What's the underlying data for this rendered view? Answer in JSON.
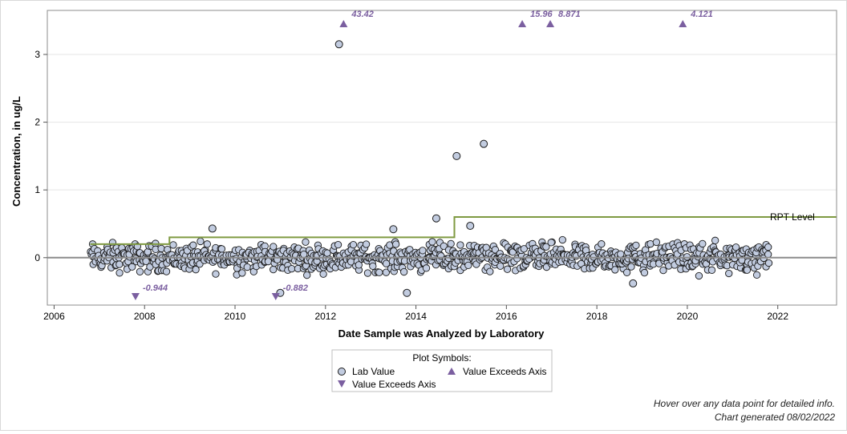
{
  "chart_data": {
    "type": "scatter",
    "title": "",
    "xlabel": "Date Sample was Analyzed by Laboratory",
    "ylabel": "Concentration, in ug/L",
    "xlim": [
      2005.85,
      2023.3
    ],
    "ylim": [
      -0.7,
      3.65
    ],
    "x_ticks": [
      2006,
      2008,
      2010,
      2012,
      2014,
      2016,
      2018,
      2020,
      2022
    ],
    "y_ticks": [
      0,
      1,
      2,
      3
    ],
    "grid": "horizontal",
    "zero_line": true,
    "rpt_level": {
      "label": "RPT Level",
      "segments": [
        {
          "x": [
            2006.8,
            2008.55
          ],
          "y": 0.2
        },
        {
          "x": [
            2008.55,
            2014.85
          ],
          "y": 0.3
        },
        {
          "x": [
            2014.85,
            2023.3
          ],
          "y": 0.6
        }
      ]
    },
    "outliers_within_axis": [
      {
        "x": 2012.3,
        "y": 3.15
      },
      {
        "x": 2014.9,
        "y": 1.5
      },
      {
        "x": 2015.5,
        "y": 1.68
      },
      {
        "x": 2014.45,
        "y": 0.58
      },
      {
        "x": 2009.5,
        "y": 0.43
      },
      {
        "x": 2013.5,
        "y": 0.42
      },
      {
        "x": 2015.2,
        "y": 0.47
      },
      {
        "x": 2013.8,
        "y": -0.52
      },
      {
        "x": 2011.0,
        "y": -0.52
      },
      {
        "x": 2018.8,
        "y": -0.38
      }
    ],
    "exceeds_above": [
      {
        "x": 2012.4,
        "label": "43.42"
      },
      {
        "x": 2016.35,
        "label": "15.96"
      },
      {
        "x": 2016.97,
        "label": "8.871"
      },
      {
        "x": 2019.9,
        "label": "4.121"
      }
    ],
    "exceeds_below": [
      {
        "x": 2007.8,
        "label": "-0.944"
      },
      {
        "x": 2010.9,
        "label": "-0.882"
      }
    ],
    "dense_series": {
      "x_range": [
        2006.8,
        2021.8
      ],
      "typical_range": [
        -0.3,
        0.3
      ],
      "approx_count": 900
    }
  },
  "legend": {
    "title": "Plot Symbols:",
    "lab_value": "Lab Value",
    "exceeds_up": "Value Exceeds Axis",
    "exceeds_down": "Value Exceeds Axis"
  },
  "footer": {
    "hover_note": "Hover over any data point for detailed info.",
    "generated": "Chart generated 08/02/2022"
  },
  "colors": {
    "marker_fill": "#c2cce0",
    "marker_stroke": "#1a1a1a",
    "triangle": "#7b5fa0",
    "rpt_line": "#7f9a41",
    "zero_line": "#8c8c8c",
    "grid": "#e5e5e5"
  }
}
